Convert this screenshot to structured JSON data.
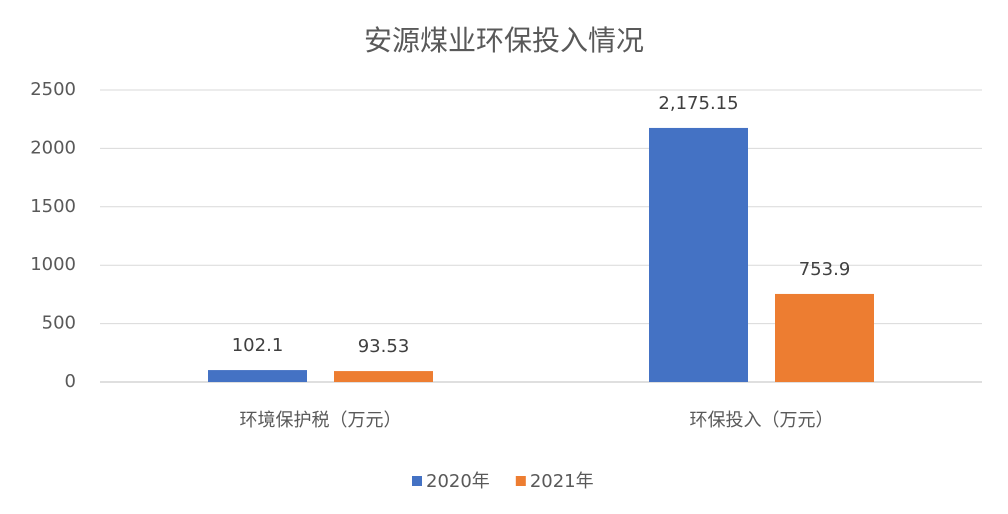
{
  "chart_data": {
    "type": "bar",
    "title": "安源煤业环保投入情况",
    "categories": [
      "环境保护税（万元）",
      "环保投入（万元）"
    ],
    "series": [
      {
        "name": "2020年",
        "color": "#4472c4",
        "values": [
          102.1,
          2175.15
        ],
        "value_labels": [
          "102.1",
          "2,175.15"
        ]
      },
      {
        "name": "2021年",
        "color": "#ed7d31",
        "values": [
          93.53,
          753.9
        ],
        "value_labels": [
          "93.53",
          "753.9"
        ]
      }
    ],
    "ylim": [
      0,
      2500
    ],
    "yticks": [
      0,
      500,
      1000,
      1500,
      2000,
      2500
    ],
    "grid": true,
    "legend": "bottom"
  }
}
